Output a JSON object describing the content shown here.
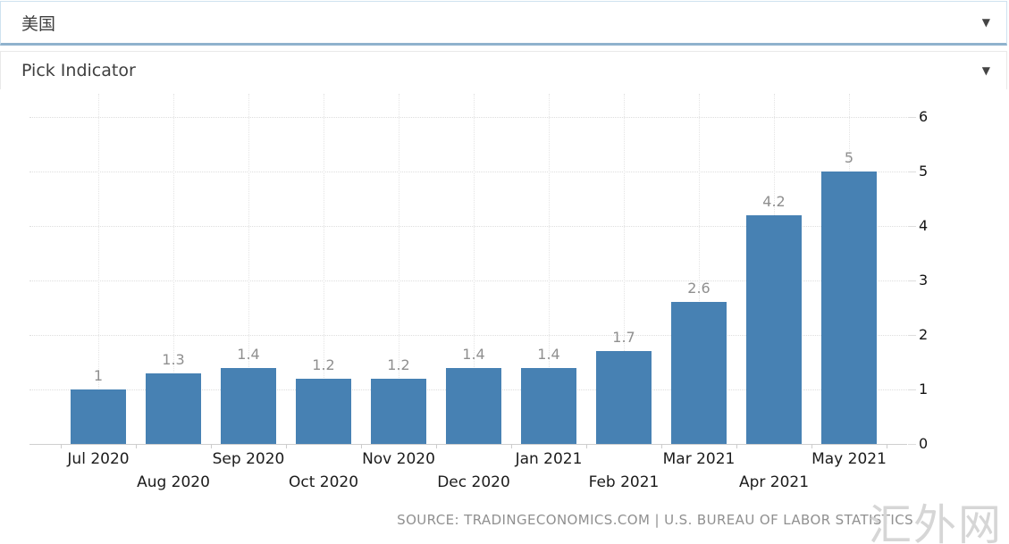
{
  "selectors": {
    "country": {
      "value": "美国"
    },
    "indicator": {
      "value": "Pick Indicator"
    }
  },
  "icons": {
    "dropdown_arrow": "▼"
  },
  "colors": {
    "bar": "#4781b3",
    "select_underline": "#8fb2cd",
    "value_label": "#8f8f8f",
    "axis_label": "#1c1c1c",
    "source_text": "#909090",
    "watermark": "#d6d6d6"
  },
  "chart_data": {
    "type": "bar",
    "title": "",
    "categories": [
      "Jul 2020",
      "Aug 2020",
      "Sep 2020",
      "Oct 2020",
      "Nov 2020",
      "Dec 2020",
      "Jan 2021",
      "Feb 2021",
      "Mar 2021",
      "Apr 2021",
      "May 2021"
    ],
    "values": [
      1,
      1.3,
      1.4,
      1.2,
      1.2,
      1.4,
      1.4,
      1.7,
      2.6,
      4.2,
      5
    ],
    "value_labels": [
      "1",
      "1.3",
      "1.4",
      "1.2",
      "1.2",
      "1.4",
      "1.4",
      "1.7",
      "2.6",
      "4.2",
      "5"
    ],
    "xlabel": "",
    "ylabel": "",
    "ylim": [
      0,
      6
    ],
    "yticks": [
      0,
      1,
      2,
      3,
      4,
      5,
      6
    ],
    "ytick_side": "right",
    "grid": true,
    "legend": "none",
    "x_labels_staggered": true
  },
  "footer": {
    "source": "SOURCE: TRADINGECONOMICS.COM | U.S. BUREAU OF LABOR STATISTICS",
    "watermark": "汇外网"
  }
}
